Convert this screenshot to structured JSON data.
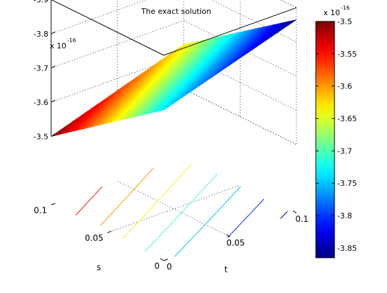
{
  "chart_data": {
    "type": "surface",
    "title": "The exact solution",
    "xlabel": "t",
    "ylabel": "s",
    "zlabel": "",
    "x_range": [
      0,
      0.1
    ],
    "y_range": [
      0,
      0.1
    ],
    "z_range": [
      -3.9e-16,
      -3.5e-16
    ],
    "z_exponent_label": "x 10",
    "z_exponent_power": "-16",
    "x_ticks": [
      "0",
      "0.05",
      "0.1"
    ],
    "y_ticks": [
      "0",
      "0.05",
      "0.1"
    ],
    "z_ticks": [
      "-3.5",
      "-3.6",
      "-3.7",
      "-3.8",
      "-3.9"
    ],
    "corner_values": [
      {
        "t": 0,
        "s": 0.1,
        "z": -3.5
      },
      {
        "t": 0.1,
        "s": 0.1,
        "z": -3.63
      },
      {
        "t": 0.1,
        "s": 0,
        "z": -3.865
      },
      {
        "t": 0,
        "s": 0,
        "z": -3.74
      }
    ],
    "contour_levels": [
      -3.55,
      -3.6,
      -3.65,
      -3.7,
      -3.75,
      -3.8,
      -3.85
    ],
    "grid": true,
    "colormap": "jet",
    "colorbar": {
      "range": [
        -3.865,
        -3.5
      ],
      "ticks": [
        "-3.5",
        "-3.55",
        "-3.6",
        "-3.65",
        "-3.7",
        "-3.75",
        "-3.8",
        "-3.85"
      ],
      "exponent_label": "x 10",
      "exponent_power": "-16"
    }
  }
}
